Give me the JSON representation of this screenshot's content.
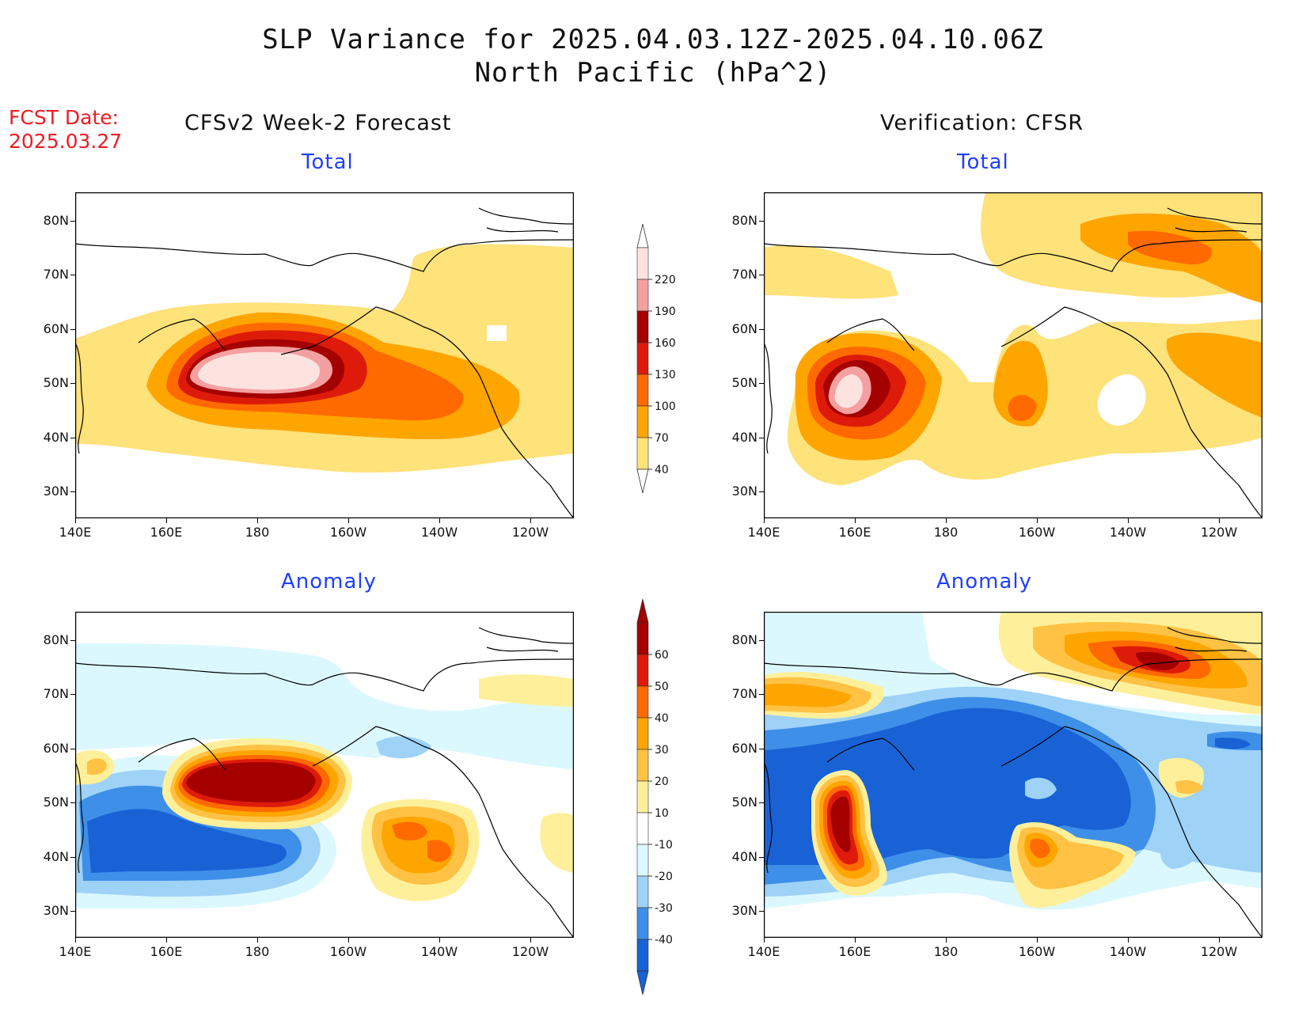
{
  "header": {
    "title_line1": "SLP Variance for 2025.04.03.12Z-2025.04.10.06Z",
    "title_line2": "North Pacific (hPa^2)",
    "fcst_label": "FCST Date:",
    "fcst_date": "2025.03.27"
  },
  "columns": {
    "left_title": "CFSv2 Week-2 Forecast",
    "right_title": "Verification: CFSR"
  },
  "panels": {
    "total_label": "Total",
    "anomaly_label": "Anomaly"
  },
  "axes": {
    "lat_ticks": [
      "80N",
      "70N",
      "60N",
      "50N",
      "40N",
      "30N"
    ],
    "lon_ticks": [
      "140E",
      "160E",
      "180",
      "160W",
      "140W",
      "120W"
    ]
  },
  "colorbar_total": {
    "levels": [
      "220",
      "190",
      "160",
      "130",
      "100",
      "70",
      "40"
    ],
    "colors": [
      "#fde3e0",
      "#f4a0a0",
      "#a50000",
      "#de1b0a",
      "#ff6a00",
      "#ffa500",
      "#fee27a"
    ]
  },
  "colorbar_anomaly": {
    "levels": [
      "60",
      "50",
      "40",
      "30",
      "20",
      "10",
      "-10",
      "-20",
      "-30",
      "-40"
    ],
    "colors": [
      "#a50000",
      "#de1b0a",
      "#ff6a00",
      "#ffa500",
      "#ffc244",
      "#fef09a",
      "#ffffff",
      "#dcf8ff",
      "#9ed2f7",
      "#3e8fe8",
      "#1862d6"
    ]
  },
  "palette": {
    "t40": "#fee27a",
    "t70": "#ffa500",
    "t100": "#ff6a00",
    "t130": "#de1b0a",
    "t160": "#a50000",
    "t190": "#f4a0a0",
    "t220": "#fde3e0",
    "a_m40": "#1862d6",
    "a_m30": "#3e8fe8",
    "a_m20": "#9ed2f7",
    "a_m10": "#dcf8ff",
    "a_10": "#fef09a",
    "a_20": "#ffc244",
    "a_30": "#ffa500",
    "a_40": "#ff6a00",
    "a_50": "#de1b0a",
    "a_60": "#a50000"
  }
}
